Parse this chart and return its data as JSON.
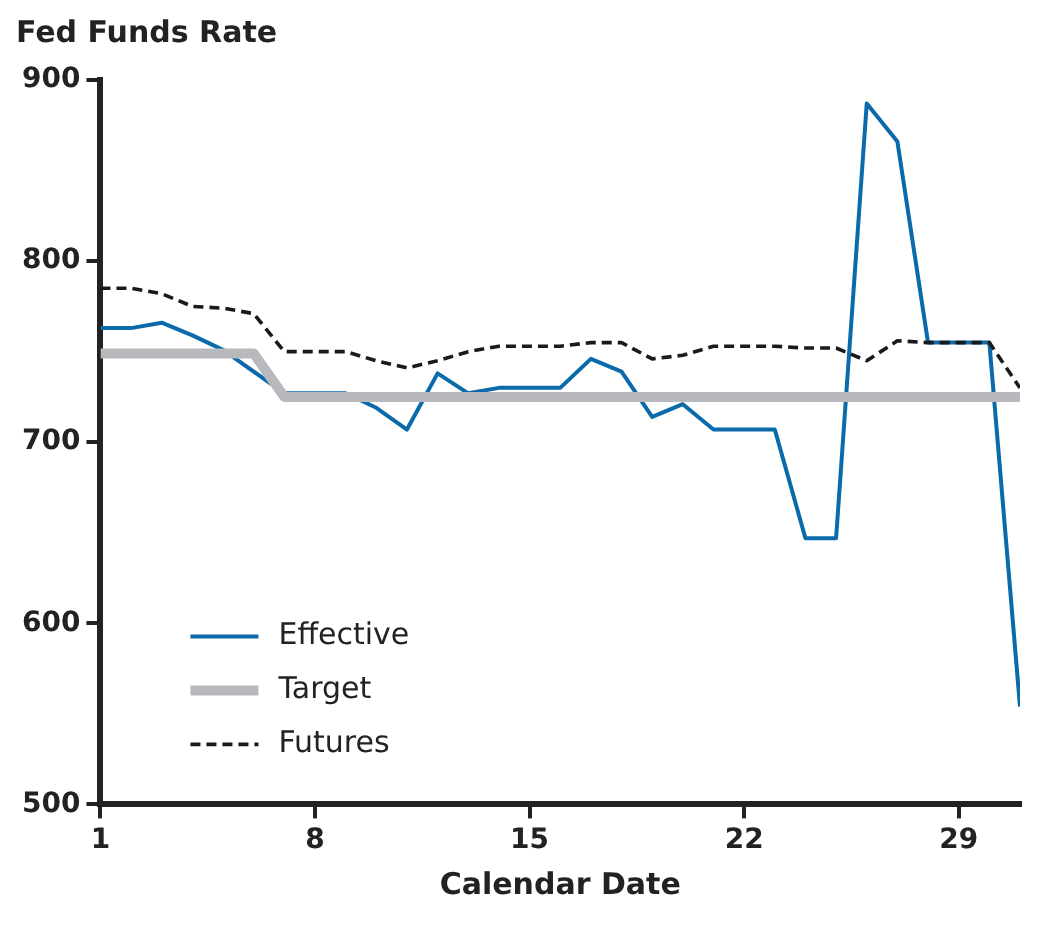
{
  "chart_data": {
    "type": "line",
    "title": "Fed Funds Rate",
    "xlabel": "Calendar Date",
    "x": [
      1,
      2,
      3,
      4,
      5,
      6,
      7,
      8,
      9,
      10,
      11,
      12,
      13,
      14,
      15,
      16,
      17,
      18,
      19,
      20,
      21,
      22,
      23,
      24,
      25,
      26,
      27,
      28,
      29,
      30,
      31
    ],
    "xlim": [
      1,
      31
    ],
    "xticks": [
      1,
      8,
      15,
      22,
      29
    ],
    "ylim": [
      500,
      900
    ],
    "yticks": [
      500,
      600,
      700,
      800,
      900
    ],
    "grid": false,
    "legend": "bottom left",
    "marker": "none",
    "series": [
      {
        "name": "Effective",
        "color": "#0a6aaa",
        "line_style": "solid",
        "values": [
          763,
          763,
          766,
          759,
          751,
          null,
          727,
          727,
          727,
          719,
          707,
          738,
          727,
          730,
          730,
          730,
          746,
          739,
          714,
          721,
          707,
          707,
          707,
          647,
          647,
          887,
          866,
          755,
          755,
          755,
          554
        ]
      },
      {
        "name": "Target",
        "color": "#b8b9bc",
        "line_style": "solid",
        "values": [
          749,
          749,
          749,
          749,
          749,
          749,
          725,
          725,
          725,
          725,
          725,
          725,
          725,
          725,
          725,
          725,
          725,
          725,
          725,
          725,
          725,
          725,
          725,
          725,
          725,
          725,
          725,
          725,
          725,
          725,
          725
        ]
      },
      {
        "name": "Futures",
        "color": "#1a1a1a",
        "line_style": "dashed",
        "values": [
          785,
          785,
          782,
          775,
          774,
          771,
          750,
          750,
          750,
          745,
          741,
          745,
          750,
          753,
          753,
          753,
          755,
          755,
          746,
          748,
          753,
          753,
          753,
          752,
          752,
          745,
          756,
          755,
          755,
          755,
          730
        ]
      }
    ]
  }
}
